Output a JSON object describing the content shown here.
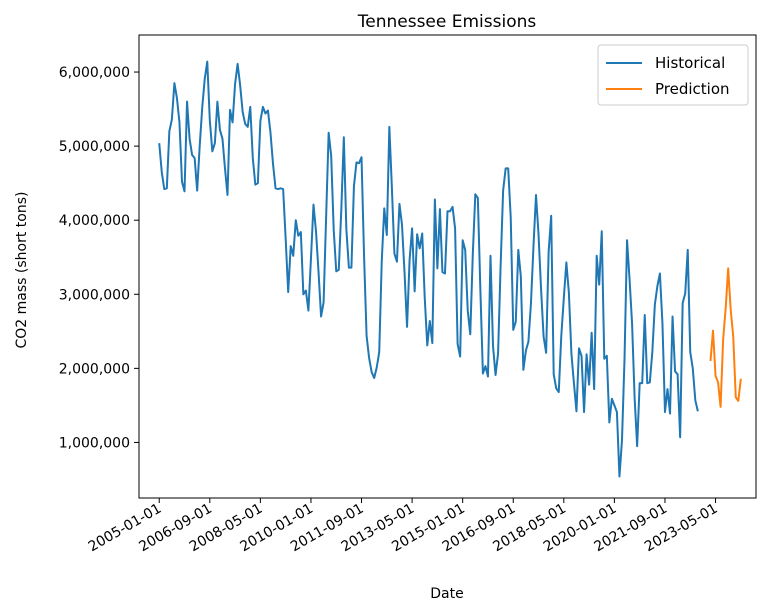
{
  "chart_data": {
    "type": "line",
    "title": "Tennessee Emissions",
    "xlabel": "Date",
    "ylabel": "CO2 mass (short tons)",
    "x_ticks": [
      "2005-01-01",
      "2006-09-01",
      "2008-05-01",
      "2010-01-01",
      "2011-09-01",
      "2013-05-01",
      "2015-01-01",
      "2016-09-01",
      "2018-05-01",
      "2020-01-01",
      "2021-09-01",
      "2023-05-01"
    ],
    "y_ticks": [
      1000000,
      2000000,
      3000000,
      4000000,
      5000000,
      6000000
    ],
    "y_tick_labels": [
      "1,000,000",
      "2,000,000",
      "3,000,000",
      "4,000,000",
      "5,000,000",
      "6,000,000"
    ],
    "xlim": [
      "2004-05-01",
      "2024-09-01"
    ],
    "ylim": [
      250000,
      6500000
    ],
    "grid": false,
    "legend": "top-right",
    "colors": {
      "Historical": "#1f77b4",
      "Prediction": "#ff7f0e"
    },
    "series": [
      {
        "name": "Historical",
        "start": "2005-01",
        "values": [
          5040000,
          4650000,
          4420000,
          4430000,
          5200000,
          5360000,
          5850000,
          5650000,
          5320000,
          4520000,
          4390000,
          5600000,
          5100000,
          4880000,
          4840000,
          4400000,
          5000000,
          5520000,
          5910000,
          6140000,
          5350000,
          4930000,
          5040000,
          5600000,
          5220000,
          5100000,
          4700000,
          4340000,
          5490000,
          5320000,
          5840000,
          6110000,
          5820000,
          5460000,
          5300000,
          5260000,
          5530000,
          4840000,
          4480000,
          4500000,
          5340000,
          5530000,
          5440000,
          5480000,
          5180000,
          4760000,
          4430000,
          4420000,
          4430000,
          4420000,
          3750000,
          3030000,
          3650000,
          3520000,
          4000000,
          3790000,
          3840000,
          3000000,
          3050000,
          2780000,
          3480000,
          4210000,
          3850000,
          3300000,
          2700000,
          2890000,
          4040000,
          5180000,
          4870000,
          3870000,
          3310000,
          3330000,
          4140000,
          5120000,
          3880000,
          3360000,
          3360000,
          4460000,
          4780000,
          4770000,
          4850000,
          3520000,
          2440000,
          2140000,
          1950000,
          1870000,
          2010000,
          2220000,
          3450000,
          4160000,
          3800000,
          5260000,
          4440000,
          3550000,
          3440000,
          4220000,
          3940000,
          3300000,
          2560000,
          3460000,
          3890000,
          3040000,
          3810000,
          3620000,
          3820000,
          2950000,
          2310000,
          2640000,
          2340000,
          4280000,
          3350000,
          4150000,
          3300000,
          3280000,
          4120000,
          4120000,
          4180000,
          3890000,
          2330000,
          2160000,
          3730000,
          3600000,
          2780000,
          2460000,
          3540000,
          4350000,
          4300000,
          3060000,
          1930000,
          2030000,
          1890000,
          3520000,
          2300000,
          1910000,
          2200000,
          3380000,
          4400000,
          4700000,
          4700000,
          4040000,
          2520000,
          2630000,
          3600000,
          3240000,
          1980000,
          2240000,
          2360000,
          2880000,
          3650000,
          4340000,
          3810000,
          3070000,
          2430000,
          2210000,
          3580000,
          4060000,
          1920000,
          1730000,
          1680000,
          2440000,
          2950000,
          3430000,
          3020000,
          2200000,
          1800000,
          1420000,
          2270000,
          2170000,
          1410000,
          2190000,
          1780000,
          2480000,
          1720000,
          3520000,
          3130000,
          3850000,
          2130000,
          2170000,
          1270000,
          1590000,
          1500000,
          1410000,
          540000,
          1030000,
          2120000,
          3730000,
          3200000,
          2600000,
          1600000,
          950000,
          1800000,
          1800000,
          2720000,
          1800000,
          1810000,
          2220000,
          2860000,
          3110000,
          3280000,
          2610000,
          1410000,
          1720000,
          1390000,
          2700000,
          1960000,
          1920000,
          1070000,
          2880000,
          3010000,
          3600000,
          2220000,
          2000000,
          1570000,
          1420000
        ]
      },
      {
        "name": "Prediction",
        "start": "2023-03",
        "values": [
          2100000,
          2510000,
          1900000,
          1810000,
          1480000,
          2390000,
          2810000,
          3350000,
          2790000,
          2430000,
          1610000,
          1560000,
          1860000
        ]
      }
    ]
  }
}
